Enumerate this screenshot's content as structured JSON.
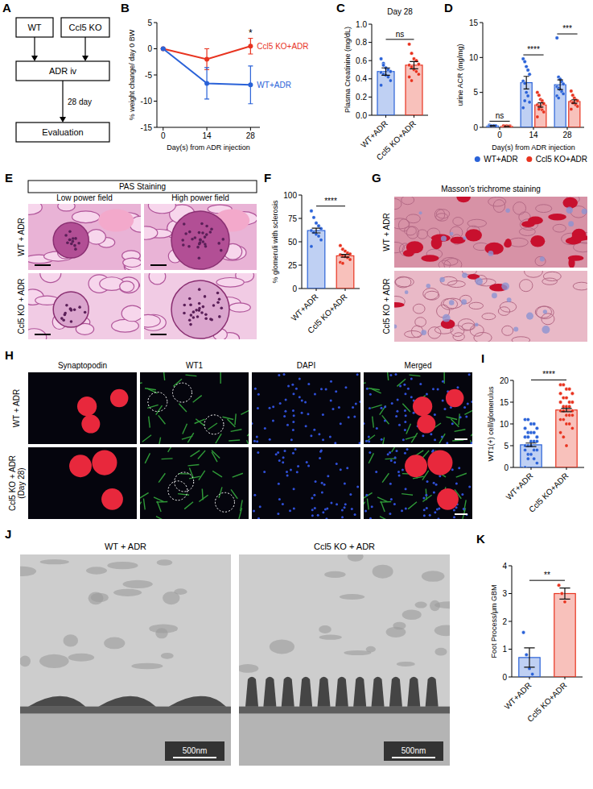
{
  "diagram": {
    "panel": "A",
    "nodes": [
      "WT",
      "Ccl5 KO",
      "ADR iv",
      "Evaluation"
    ],
    "edge_label": "28 day"
  },
  "chart_data": [
    {
      "panel": "B",
      "type": "line",
      "y_label": "% weight change/ day 0 BW",
      "x_label": "Day(s) from ADR injection",
      "x": [
        0,
        14,
        28
      ],
      "xlim": [
        -2,
        31
      ],
      "xticks": [
        0,
        14,
        28
      ],
      "ylim": [
        -15,
        5
      ],
      "yticks": [
        -15,
        -10,
        -5,
        0,
        5
      ],
      "series": [
        {
          "name": "Ccl5 KO+ADR",
          "color": "#e8331f",
          "values": [
            0,
            -2,
            0.5
          ],
          "errors": [
            0,
            2,
            1.5
          ],
          "marker": "circle"
        },
        {
          "name": "WT+ADR",
          "color": "#2a62d8",
          "values": [
            0,
            -6.6,
            -6.9
          ],
          "errors": [
            0,
            3,
            3.6
          ],
          "marker": "circle"
        }
      ],
      "annotations": [
        "*"
      ],
      "legend": "right"
    },
    {
      "panel": "C",
      "type": "bar",
      "title": "Day 28",
      "y_label": "Plasma Creatinine (mg/dL)",
      "categories": [
        "WT+ADR",
        "Ccl5 KO+ADR"
      ],
      "values": [
        0.48,
        0.55
      ],
      "errors": [
        0.04,
        0.04
      ],
      "points": [
        [
          0.62,
          0.57,
          0.52,
          0.5,
          0.48,
          0.47,
          0.45,
          0.44,
          0.42,
          0.38,
          0.33,
          0.55
        ],
        [
          0.78,
          0.68,
          0.62,
          0.6,
          0.56,
          0.55,
          0.53,
          0.5,
          0.48,
          0.45,
          0.42,
          0.38
        ]
      ],
      "colors": [
        "#2a62d8",
        "#e8331f"
      ],
      "ylim": [
        0,
        1
      ],
      "yticks": [
        {
          "value": 0,
          "label": "0.0"
        },
        0.2,
        0.4,
        0.6,
        0.8,
        {
          "value": 1,
          "label": "1.0"
        }
      ],
      "annotations": [
        "ns"
      ]
    },
    {
      "panel": "D",
      "type": "bar",
      "y_label": "urine ACR (mg/mg)",
      "x_label": "Day(s) from ADR injection",
      "categories": [
        "0",
        "14",
        "28"
      ],
      "series": [
        {
          "name": "WT+ADR",
          "color": "#2a62d8",
          "values": [
            0.2,
            6.4,
            6.1
          ],
          "errors": [
            0.05,
            0.9,
            0.7
          ],
          "points": [
            [
              0.3,
              0.2,
              0.25,
              0.15,
              0.2,
              0.3,
              0.1,
              0.2,
              0.25,
              0.2,
              0.15,
              0.2
            ],
            [
              9.8,
              9.4,
              8.7,
              8.2,
              7.6,
              6.6,
              6.3,
              5.0,
              4.5,
              3.6,
              2.8,
              3.8
            ],
            [
              12.8,
              7.2,
              6.9,
              6.5,
              6.2,
              5.8,
              5.6,
              5.4,
              5.1,
              4.8,
              4.5,
              4.2
            ]
          ]
        },
        {
          "name": "Ccl5 KO+ADR",
          "color": "#e8331f",
          "values": [
            0.15,
            3.2,
            3.7
          ],
          "errors": [
            0.02,
            0.3,
            0.25
          ],
          "points": [
            [
              0.2,
              0.1,
              0.15,
              0.1,
              0.2,
              0.15,
              0.1,
              0.2,
              0.15,
              0.1,
              0.2,
              0.15
            ],
            [
              5.0,
              4.6,
              4.0,
              3.8,
              3.4,
              3.2,
              3.0,
              2.8,
              2.5,
              2.2,
              1.5,
              2.6
            ],
            [
              5.2,
              4.6,
              4.2,
              3.9,
              3.8,
              3.7,
              3.6,
              3.4,
              3.2,
              3.0,
              2.6,
              3.5
            ]
          ]
        }
      ],
      "ylim": [
        0,
        15
      ],
      "yticks": [
        0,
        5,
        10,
        15
      ],
      "annotations": [
        "ns",
        "****",
        "***"
      ],
      "legend": "bottom"
    },
    {
      "panel": "F",
      "type": "bar",
      "y_label": "% glomeruli with sclerosis",
      "categories": [
        "WT+ADR",
        "Ccl5 KO+ADR"
      ],
      "values": [
        62,
        35
      ],
      "errors": [
        2.5,
        1.5
      ],
      "points": [
        [
          83,
          76,
          70,
          67,
          64,
          62,
          60,
          58,
          56,
          52,
          45
        ],
        [
          46,
          42,
          40,
          38,
          37,
          36,
          35,
          34,
          33,
          31,
          28,
          27
        ]
      ],
      "colors": [
        "#2a62d8",
        "#e8331f"
      ],
      "ylim": [
        0,
        100
      ],
      "yticks": [
        0,
        25,
        50,
        75,
        100
      ],
      "annotations": [
        "****"
      ]
    },
    {
      "panel": "I",
      "type": "bar",
      "y_label": "WT1(+) cell/glomerulus",
      "categories": [
        "WT+ADR",
        "Ccl5 KO+ADR"
      ],
      "values": [
        5.2,
        13.2
      ],
      "errors": [
        0.4,
        0.4
      ],
      "points": [
        [
          11,
          11,
          10,
          10,
          9,
          9,
          8,
          8,
          8,
          7,
          7,
          7,
          6,
          6,
          6,
          5,
          5,
          5,
          4,
          4,
          4,
          3,
          3,
          2,
          1,
          0,
          2
        ],
        [
          19,
          19,
          18,
          18,
          17,
          17,
          16,
          16,
          15,
          15,
          15,
          14,
          14,
          14,
          13,
          13,
          13,
          12,
          12,
          12,
          11,
          11,
          10,
          10,
          9,
          8,
          7,
          5
        ]
      ],
      "colors": [
        "#2a62d8",
        "#e8331f"
      ],
      "ylim": [
        0,
        20
      ],
      "yticks": [
        0,
        5,
        10,
        15,
        20
      ],
      "annotations": [
        "****"
      ]
    },
    {
      "panel": "K",
      "type": "bar",
      "y_label": "Foot Process/μm GBM",
      "categories": [
        "WT+ADR",
        "Ccl5 KO+ADR"
      ],
      "values": [
        0.7,
        3.0
      ],
      "errors": [
        0.35,
        0.2
      ],
      "points": [
        [
          1.6,
          0.8,
          0.3,
          0.1
        ],
        [
          3.3,
          3.0,
          2.7
        ]
      ],
      "colors": [
        "#2a62d8",
        "#e8331f"
      ],
      "ylim": [
        0,
        4
      ],
      "yticks": [
        0,
        1,
        2,
        3,
        4
      ],
      "annotations": [
        "**"
      ]
    }
  ],
  "images": [
    {
      "panel": "E",
      "title": "PAS Staining",
      "columns": [
        "Low power field",
        "High power field"
      ],
      "rows": [
        "WT + ADR",
        "Ccl5 KO + ADR"
      ]
    },
    {
      "panel": "G",
      "title": "Masson's trichrome staining",
      "rows": [
        "WT + ADR",
        "Ccl5 KO + ADR"
      ]
    },
    {
      "panel": "H",
      "columns": [
        "Synaptopodin",
        "WT1",
        "DAPI",
        "Merged"
      ],
      "rows": [
        "WT + ADR",
        "Ccl5 KO + ADR (Day 28)"
      ]
    },
    {
      "panel": "J",
      "columns": [
        "WT + ADR",
        "Ccl5 KO + ADR"
      ],
      "scale_label": "500nm"
    }
  ]
}
